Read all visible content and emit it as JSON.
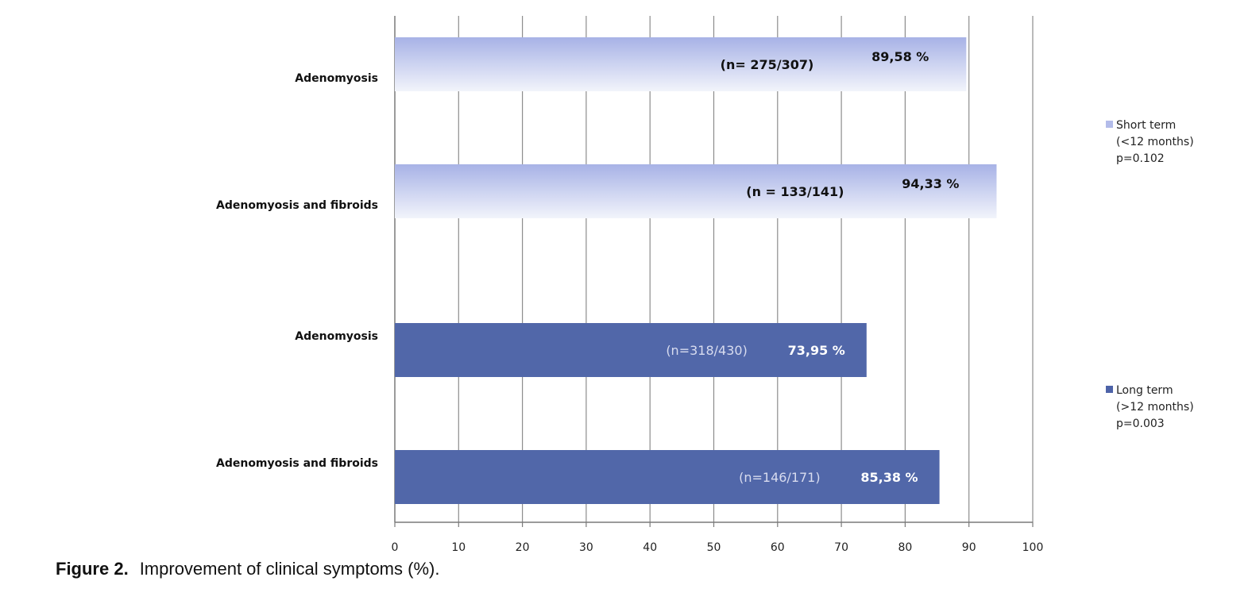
{
  "chart_data": {
    "type": "bar",
    "orientation": "horizontal",
    "title": "",
    "xlabel": "",
    "ylabel": "",
    "xlim": [
      0,
      100
    ],
    "x_ticks": [
      "0",
      "10",
      "20",
      "30",
      "40",
      "50",
      "60",
      "70",
      "80",
      "90",
      "100"
    ],
    "grid": true,
    "legend_position": "right",
    "series": [
      {
        "name": "Short term",
        "legend_lines": [
          "Short term",
          "(<12 months)",
          "p=0.102"
        ],
        "color": "#a7b2e6",
        "color_light": "#f2f4fb",
        "categories": [
          "Adenomyosis",
          "Adenomyosis and fibroids"
        ],
        "values": [
          89.58,
          94.33
        ],
        "value_labels": [
          "89,58 %",
          "94,33 %"
        ],
        "n_labels": [
          "(n= 275/307)",
          "(n = 133/141)"
        ]
      },
      {
        "name": "Long term",
        "legend_lines": [
          "Long term",
          "(>12 months)",
          "p=0.003"
        ],
        "color": "#5167a9",
        "categories": [
          "Adenomyosis",
          "Adenomyosis and fibroids"
        ],
        "values": [
          73.95,
          85.38
        ],
        "value_labels": [
          "73,95 %",
          "85,38 %"
        ],
        "n_labels": [
          "(n=318/430)",
          "(n=146/171)"
        ]
      }
    ]
  },
  "caption": {
    "label": "Figure 2.",
    "text": "Improvement of clinical symptoms (%)."
  }
}
